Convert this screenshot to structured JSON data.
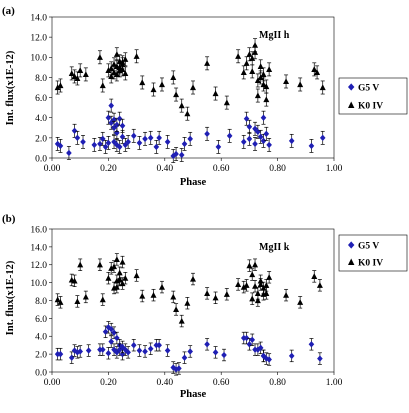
{
  "chart_data": [
    {
      "type": "scatter",
      "panel_label": "(a)",
      "annotation": "MgII h",
      "xlabel": "Phase",
      "ylabel": "Int. flux(x1E-12)",
      "xlim": [
        0.0,
        1.0
      ],
      "ylim": [
        0.0,
        14.0
      ],
      "x_ticks": [
        "0.00",
        "0.20",
        "0.40",
        "0.60",
        "0.80",
        "1.00"
      ],
      "y_ticks": [
        "0.0",
        "2.0",
        "4.0",
        "6.0",
        "8.0",
        "10.0",
        "12.0",
        "14.0"
      ],
      "grid": false,
      "legend_position": "right",
      "series": [
        {
          "name": "G5 V",
          "marker": "diamond",
          "color": "#1f1fb4",
          "x": [
            0.02,
            0.03,
            0.06,
            0.08,
            0.09,
            0.11,
            0.15,
            0.17,
            0.18,
            0.19,
            0.2,
            0.2,
            0.21,
            0.21,
            0.22,
            0.22,
            0.22,
            0.23,
            0.23,
            0.23,
            0.24,
            0.24,
            0.25,
            0.25,
            0.26,
            0.27,
            0.29,
            0.31,
            0.33,
            0.35,
            0.37,
            0.38,
            0.41,
            0.43,
            0.44,
            0.46,
            0.47,
            0.49,
            0.55,
            0.59,
            0.63,
            0.68,
            0.69,
            0.7,
            0.7,
            0.72,
            0.72,
            0.73,
            0.74,
            0.75,
            0.75,
            0.76,
            0.77,
            0.85,
            0.92,
            0.96
          ],
          "y": [
            1.4,
            1.2,
            0.5,
            2.7,
            2.0,
            1.6,
            1.3,
            1.4,
            1.9,
            1.1,
            1.5,
            4.0,
            5.2,
            3.5,
            3.8,
            3.0,
            1.6,
            2.5,
            3.3,
            1.3,
            3.9,
            1.1,
            3.2,
            2.1,
            1.3,
            1.6,
            2.2,
            1.5,
            1.9,
            2.0,
            1.1,
            2.0,
            1.6,
            0.2,
            0.4,
            0.3,
            1.4,
            1.9,
            2.4,
            1.1,
            2.2,
            1.6,
            3.9,
            3.1,
            1.9,
            2.9,
            1.4,
            2.6,
            2.1,
            1.7,
            4.0,
            2.4,
            1.3,
            1.7,
            1.2,
            2.0
          ]
        },
        {
          "name": "K0 IV",
          "marker": "triangle",
          "color": "#000000",
          "x": [
            0.02,
            0.03,
            0.07,
            0.08,
            0.09,
            0.1,
            0.12,
            0.17,
            0.18,
            0.2,
            0.21,
            0.21,
            0.22,
            0.22,
            0.23,
            0.23,
            0.23,
            0.24,
            0.24,
            0.24,
            0.25,
            0.25,
            0.25,
            0.26,
            0.26,
            0.3,
            0.32,
            0.36,
            0.39,
            0.43,
            0.44,
            0.46,
            0.48,
            0.5,
            0.55,
            0.58,
            0.62,
            0.66,
            0.68,
            0.69,
            0.7,
            0.71,
            0.71,
            0.72,
            0.72,
            0.73,
            0.73,
            0.74,
            0.74,
            0.75,
            0.75,
            0.76,
            0.76,
            0.77,
            0.83,
            0.88,
            0.93,
            0.94,
            0.96
          ],
          "y": [
            7.0,
            7.2,
            8.4,
            8.1,
            7.9,
            8.7,
            8.3,
            10.0,
            7.2,
            8.7,
            8.1,
            8.9,
            9.3,
            8.5,
            9.1,
            10.3,
            8.3,
            9.6,
            8.7,
            9.0,
            9.3,
            8.8,
            9.5,
            8.4,
            9.8,
            10.1,
            7.5,
            6.8,
            7.3,
            8.0,
            6.3,
            5.2,
            4.4,
            7.0,
            9.4,
            6.4,
            5.5,
            10.1,
            8.5,
            9.4,
            10.3,
            9.9,
            8.6,
            11.2,
            10.5,
            7.7,
            6.2,
            8.0,
            9.1,
            7.3,
            8.3,
            5.8,
            7.1,
            8.8,
            7.6,
            7.3,
            8.8,
            8.5,
            7.0
          ]
        }
      ]
    },
    {
      "type": "scatter",
      "panel_label": "(b)",
      "annotation": "MgII k",
      "xlabel": "Phase",
      "ylabel": "Int. flux(x1E-12)",
      "xlim": [
        0.0,
        1.0
      ],
      "ylim": [
        0.0,
        16.0
      ],
      "x_ticks": [
        "0.00",
        "0.20",
        "0.40",
        "0.60",
        "0.80",
        "1.00"
      ],
      "y_ticks": [
        "0.0",
        "2.0",
        "4.0",
        "6.0",
        "8.0",
        "10.0",
        "12.0",
        "14.0",
        "16.0"
      ],
      "grid": false,
      "legend_position": "right",
      "series": [
        {
          "name": "G5 V",
          "marker": "diamond",
          "color": "#1f1fb4",
          "x": [
            0.02,
            0.03,
            0.07,
            0.08,
            0.09,
            0.1,
            0.13,
            0.17,
            0.18,
            0.19,
            0.2,
            0.2,
            0.21,
            0.21,
            0.22,
            0.22,
            0.23,
            0.23,
            0.24,
            0.24,
            0.25,
            0.25,
            0.26,
            0.27,
            0.29,
            0.31,
            0.33,
            0.35,
            0.37,
            0.38,
            0.41,
            0.43,
            0.44,
            0.45,
            0.47,
            0.49,
            0.55,
            0.58,
            0.61,
            0.68,
            0.69,
            0.7,
            0.71,
            0.72,
            0.73,
            0.74,
            0.75,
            0.75,
            0.76,
            0.77,
            0.85,
            0.92,
            0.95
          ],
          "y": [
            2.0,
            2.0,
            1.6,
            2.4,
            2.2,
            2.3,
            2.4,
            2.5,
            2.5,
            4.5,
            5.0,
            2.1,
            4.8,
            3.4,
            2.5,
            4.4,
            3.8,
            2.2,
            3.0,
            2.5,
            2.0,
            2.8,
            2.5,
            2.2,
            3.0,
            2.4,
            2.3,
            2.6,
            3.0,
            3.0,
            2.4,
            0.5,
            0.3,
            0.4,
            1.6,
            2.3,
            3.1,
            2.2,
            1.9,
            3.8,
            3.8,
            3.1,
            3.6,
            2.5,
            2.5,
            2.7,
            1.8,
            1.8,
            1.5,
            1.4,
            1.8,
            3.1,
            1.5
          ]
        },
        {
          "name": "K0 IV",
          "marker": "triangle",
          "color": "#000000",
          "x": [
            0.02,
            0.03,
            0.07,
            0.08,
            0.09,
            0.1,
            0.12,
            0.17,
            0.18,
            0.2,
            0.21,
            0.22,
            0.22,
            0.23,
            0.23,
            0.23,
            0.24,
            0.24,
            0.24,
            0.25,
            0.25,
            0.26,
            0.3,
            0.32,
            0.36,
            0.39,
            0.43,
            0.44,
            0.46,
            0.48,
            0.5,
            0.55,
            0.58,
            0.62,
            0.66,
            0.68,
            0.69,
            0.7,
            0.71,
            0.71,
            0.72,
            0.72,
            0.73,
            0.73,
            0.74,
            0.74,
            0.75,
            0.75,
            0.76,
            0.76,
            0.77,
            0.83,
            0.88,
            0.93,
            0.95
          ],
          "y": [
            8.1,
            7.8,
            10.3,
            10.2,
            7.9,
            12.0,
            8.4,
            12.0,
            8.1,
            10.5,
            11.6,
            11.8,
            9.4,
            10.2,
            12.6,
            9.5,
            11.1,
            10.4,
            10.3,
            12.3,
            9.9,
            10.5,
            10.8,
            8.5,
            8.6,
            9.5,
            8.4,
            7.0,
            5.7,
            7.7,
            10.4,
            8.8,
            8.3,
            8.7,
            9.8,
            9.5,
            9.7,
            11.9,
            10.9,
            8.2,
            12.0,
            9.6,
            8.8,
            8.0,
            10.2,
            9.8,
            8.7,
            9.4,
            8.8,
            9.7,
            10.6,
            8.6,
            7.8,
            10.7,
            9.7
          ]
        }
      ]
    }
  ]
}
